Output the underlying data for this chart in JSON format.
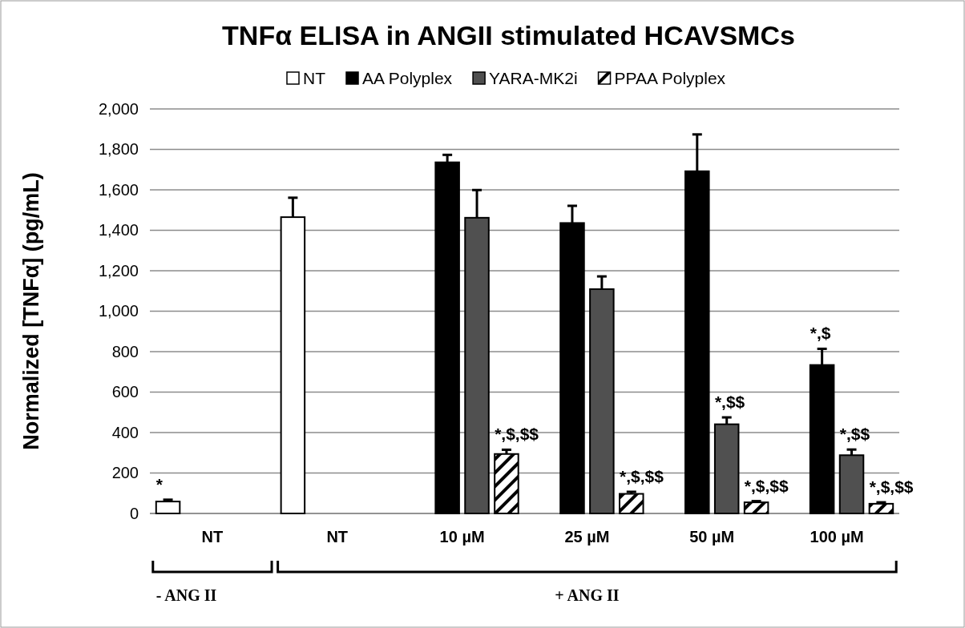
{
  "chart_data": {
    "type": "bar",
    "title": "TNFα ELISA in ANGII stimulated HCAVSMCs",
    "ylabel": "Normalized [TNFα] (pg/mL)",
    "categories": [
      "NT",
      "NT",
      "10 µM",
      "25 µM",
      "50 µM",
      "100 µM"
    ],
    "series": [
      {
        "name": "NT",
        "color": "#ffffff",
        "values": [
          59,
          1465,
          0,
          0,
          0,
          0
        ],
        "errors": [
          9,
          96,
          null,
          null,
          null,
          null
        ],
        "value_labels": [
          "*",
          null,
          null,
          null,
          null,
          null
        ]
      },
      {
        "name": "AA Polyplex",
        "color": "#000000",
        "values": [
          0,
          0,
          1736,
          1436,
          1692,
          734
        ],
        "errors": [
          null,
          null,
          37,
          85,
          182,
          80
        ],
        "value_labels": [
          null,
          null,
          null,
          null,
          null,
          "*,$"
        ]
      },
      {
        "name": "YARA-MK2i",
        "color": "#505050",
        "values": [
          0,
          0,
          1462,
          1109,
          441,
          288
        ],
        "errors": [
          null,
          null,
          137,
          63,
          34,
          28
        ],
        "value_labels": [
          null,
          null,
          null,
          null,
          "*,$$",
          "*,$$"
        ]
      },
      {
        "name": "PPAA Polyplex",
        "color": "#000000",
        "values": [
          0,
          0,
          294,
          97,
          55,
          48
        ],
        "errors": [
          null,
          null,
          21,
          10,
          6,
          7
        ],
        "value_labels": [
          null,
          null,
          "*,$,$$",
          "*,$,$$",
          "*,$,$$",
          "*,$,$$"
        ]
      }
    ],
    "ylim": [
      0,
      2000
    ],
    "yticks": [
      {
        "value": 0,
        "label": "0"
      },
      {
        "value": 200,
        "label": "200"
      },
      {
        "value": 400,
        "label": "400"
      },
      {
        "value": 600,
        "label": "600"
      },
      {
        "value": 800,
        "label": "800"
      },
      {
        "value": 1000,
        "label": "1,000"
      },
      {
        "value": 1200,
        "label": "1,200"
      },
      {
        "value": 1400,
        "label": "1,400"
      },
      {
        "value": 1600,
        "label": "1,600"
      },
      {
        "value": 1800,
        "label": "1,800"
      },
      {
        "value": 2000,
        "label": "2,000"
      }
    ],
    "grid": "y",
    "legend": "top",
    "annotations": [
      "- ANG II",
      "+ ANG II"
    ]
  }
}
